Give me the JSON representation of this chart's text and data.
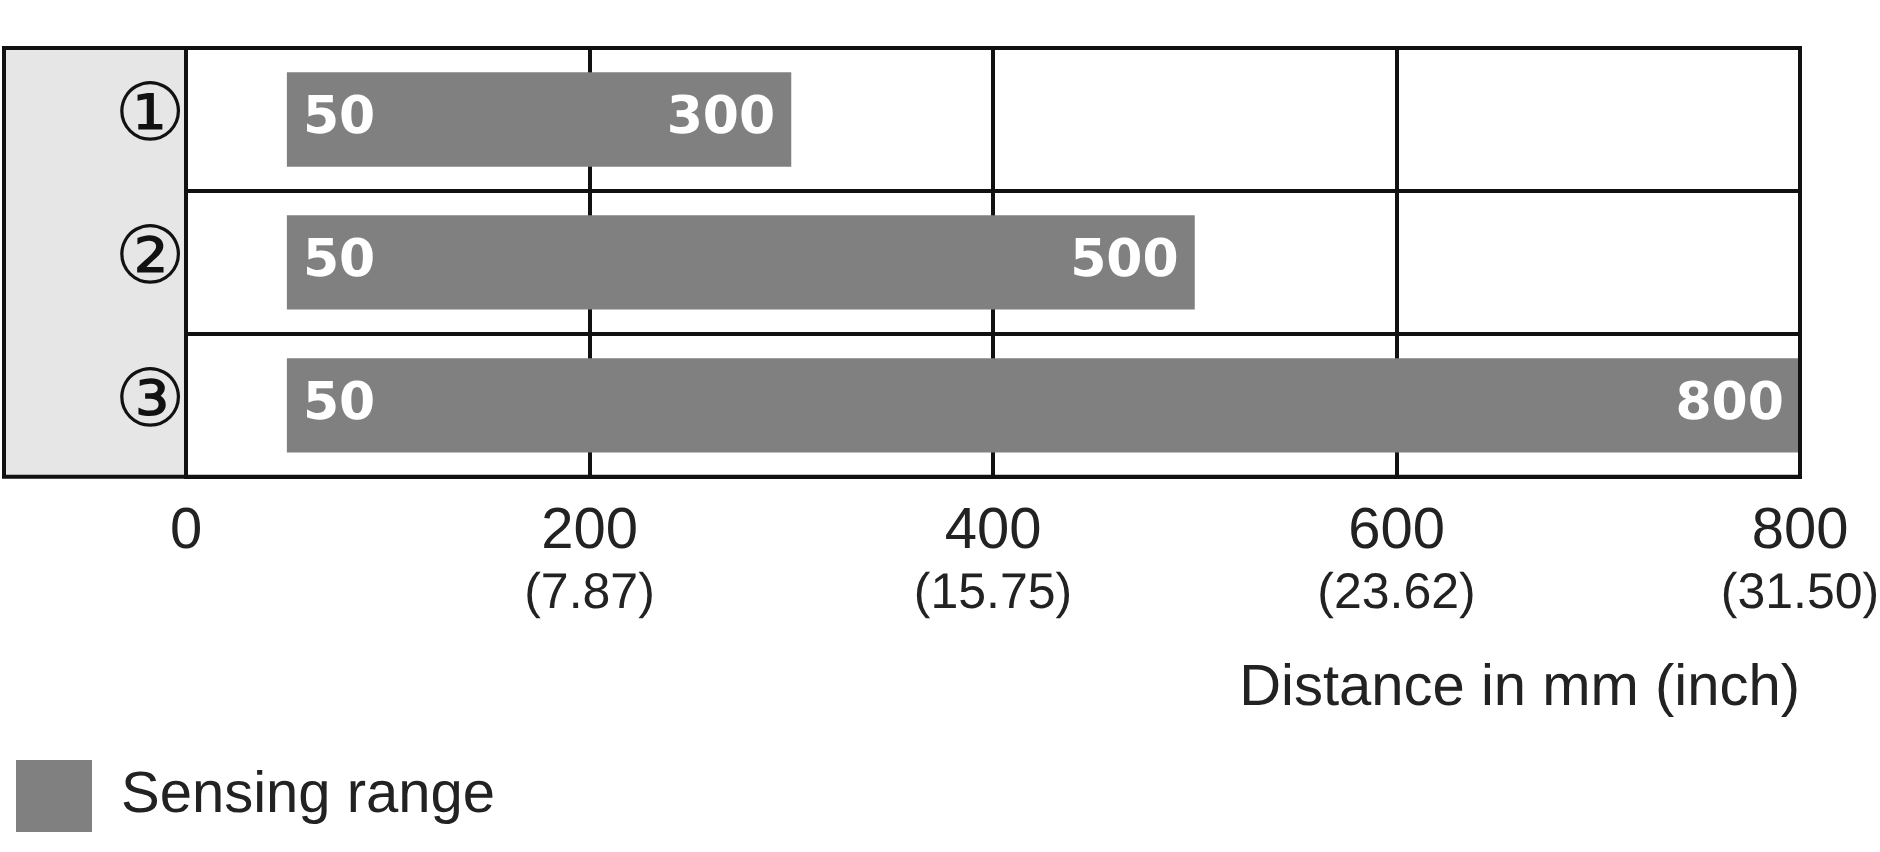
{
  "chart_data": {
    "type": "bar",
    "orientation": "horizontal",
    "xlabel": "Distance in mm (inch)",
    "categories": [
      "①",
      "②",
      "③"
    ],
    "series": [
      {
        "name": "Sensing range",
        "color": "#808080",
        "values": [
          250,
          450,
          750
        ],
        "base": [
          50,
          50,
          50
        ]
      }
    ],
    "xlim": [
      0,
      800
    ],
    "xticks": [
      0,
      200,
      400,
      600,
      800
    ],
    "grid": true,
    "legend": "bottom left",
    "annotations": [
      "50",
      "300",
      "50",
      "500",
      "50",
      "800",
      "(7.87)",
      "(15.75)",
      "(23.62)",
      "(31.50)"
    ]
  }
}
